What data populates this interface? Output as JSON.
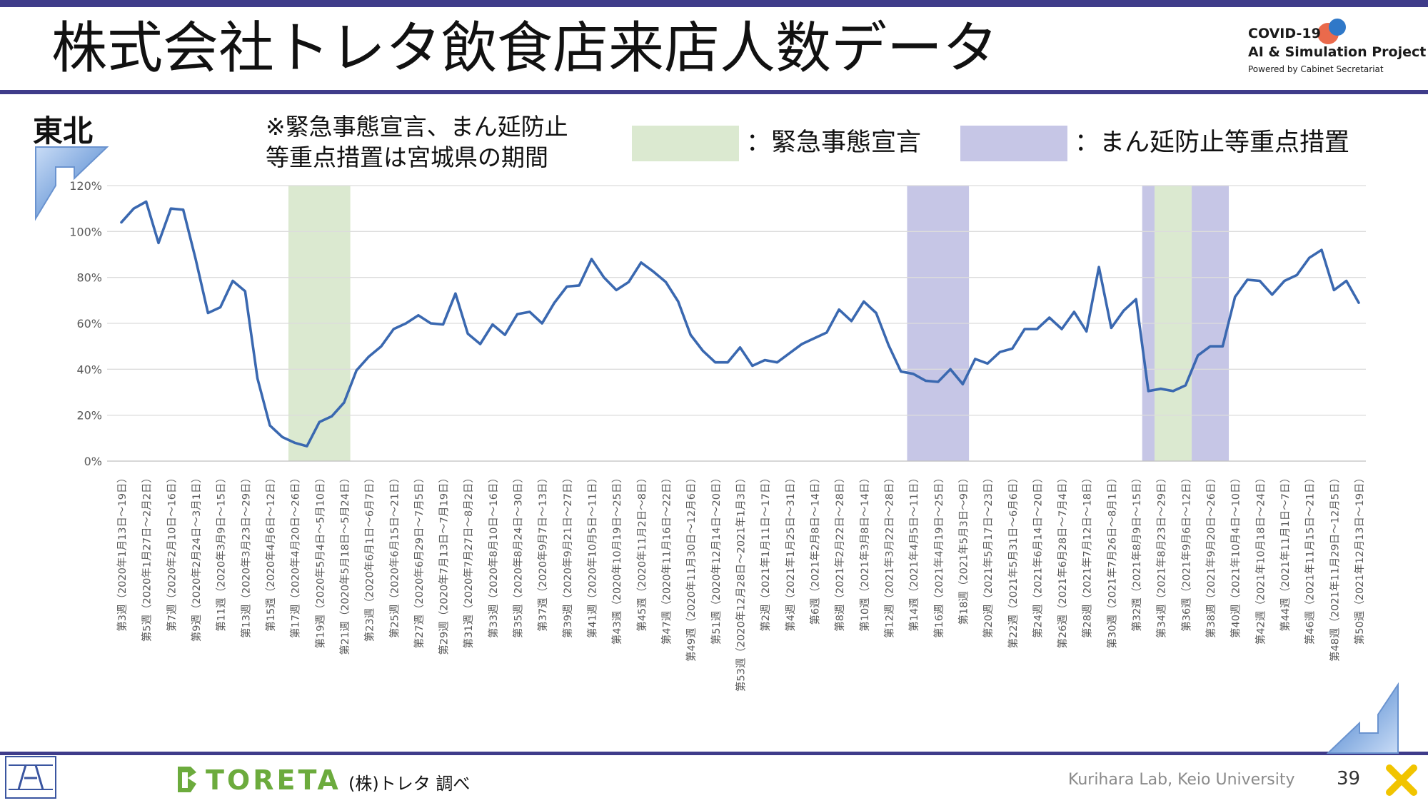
{
  "title": "株式会社トレタ飲食店来店人数データ",
  "logo": {
    "line1": "COVID-19",
    "line2": "AI & Simulation Project",
    "line3": "Powered by Cabinet Secretariat"
  },
  "region": "東北",
  "note": {
    "line1": "※緊急事態宣言、まん延防止",
    "line2": "等重点措置は宮城県の期間"
  },
  "legend": [
    {
      "label": "：緊急事態宣言",
      "color": "#dbe9d0"
    },
    {
      "label": "：まん延防止等重点措置",
      "color": "#c6c6e6"
    }
  ],
  "footer": {
    "company": "TORETA",
    "source": "(株)トレタ 調べ",
    "lab": "Kurihara Lab, Keio University",
    "page": "39"
  },
  "colors": {
    "line": "#3a68b0",
    "emergency": "#dbe9d0",
    "quasi": "#c6c6e6",
    "accent_bar": "#3f3c8a",
    "toreta_green": "#6cab3d"
  },
  "chart_data": {
    "type": "line",
    "ylim": [
      0,
      120
    ],
    "yticks": [
      "0%",
      "20%",
      "40%",
      "60%",
      "80%",
      "100%",
      "120%"
    ],
    "ytick_values": [
      0,
      20,
      40,
      60,
      80,
      100,
      120
    ],
    "grid": true,
    "legend_position": "top",
    "x_labels": [
      "第3週（2020年1月13日～19日）",
      "第5週（2020年1月27日～2月2日）",
      "第7週（2020年2月10日～16日）",
      "第9週（2020年2月24日～3月1日）",
      "第11週（2020年3月9日～15日）",
      "第13週（2020年3月23日～29日）",
      "第15週（2020年4月6日～12日）",
      "第17週（2020年4月20日～26日）",
      "第19週（2020年5月4日～5月10日）",
      "第21週（2020年5月18日～5月24日）",
      "第23週（2020年6月1日～6月7日）",
      "第25週（2020年6月15日～21日）",
      "第27週（2020年6月29日～7月5日）",
      "第29週（2020年7月13日～7月19日）",
      "第31週（2020年7月27日～8月2日）",
      "第33週（2020年8月10日～16日）",
      "第35週（2020年8月24日～30日）",
      "第37週（2020年9月7日～13日）",
      "第39週（2020年9月21日～27日）",
      "第41週（2020年10月5日～11日）",
      "第43週（2020年10月19日～25日）",
      "第45週（2020年11月2日～8日）",
      "第47週（2020年11月16日～22日）",
      "第49週（2020年11月30日～12月6日）",
      "第51週（2020年12月14日～20日）",
      "第53週（2020年12月28日～2021年1月3日）",
      "第2週（2021年1月11日～17日）",
      "第4週（2021年1月25日～31日）",
      "第6週（2021年2月8日～14日）",
      "第8週（2021年2月22日～28日）",
      "第10週（2021年3月8日～14日）",
      "第12週（2021年3月22日～28日）",
      "第14週（2021年4月5日～11日）",
      "第16週（2021年4月19日～25日）",
      "第18週（2021年5月3日～9日）",
      "第20週（2021年5月17日～23日）",
      "第22週（2021年5月31日～6月6日）",
      "第24週（2021年6月14日～20日）",
      "第26週（2021年6月28日～7月4日）",
      "第28週（2021年7月12日～18日）",
      "第30週（2021年7月26日～8月1日）",
      "第32週（2021年8月9日～15日）",
      "第34週（2021年8月23日～29日）",
      "第36週（2021年9月6日～12日）",
      "第38週（2021年9月20日～26日）",
      "第40週（2021年10月4日～10日）",
      "第42週（2021年10月18日～24日）",
      "第44週（2021年11月1日～7日）",
      "第46週（2021年11月15日～21日）",
      "第48週（2021年11月29日～12月5日）",
      "第50週（2021年12月13日～19日）"
    ],
    "values": [
      104,
      110,
      113,
      95,
      110,
      109.5,
      88,
      64.5,
      67,
      78.5,
      74,
      36,
      15.5,
      10.5,
      8,
      6.5,
      17,
      19.5,
      25.5,
      39.5,
      45.5,
      50,
      57.5,
      60,
      63.5,
      60,
      59.5,
      73,
      55.5,
      51,
      59.5,
      55,
      64,
      65,
      60,
      69,
      76,
      76.5,
      88,
      80,
      74.5,
      78,
      86.5,
      82.5,
      78,
      69.5,
      55,
      48,
      43,
      43,
      49.5,
      41.5,
      44,
      43,
      47,
      51,
      53.5,
      56,
      66,
      61,
      69.5,
      64.5,
      50.5,
      39,
      38,
      35,
      34.5,
      40,
      33.5,
      44.5,
      42.5,
      47.5,
      49,
      57.5,
      57.5,
      62.5,
      57.5,
      65,
      56.5,
      84.5,
      58,
      65.5,
      70.5,
      30.5,
      31.5,
      30.5,
      33,
      46,
      50,
      50,
      71.5,
      79,
      78.5,
      72.5,
      78.5,
      81,
      88.5,
      92,
      74.5,
      78.5,
      69
    ],
    "shading": [
      {
        "type": "emergency",
        "start": 13.5,
        "end": 18.5
      },
      {
        "type": "quasi",
        "start": 63.5,
        "end": 68.5
      },
      {
        "type": "quasi",
        "start": 82.5,
        "end": 83.5
      },
      {
        "type": "emergency",
        "start": 83.5,
        "end": 86.5
      },
      {
        "type": "quasi",
        "start": 86.5,
        "end": 89.5
      }
    ]
  }
}
